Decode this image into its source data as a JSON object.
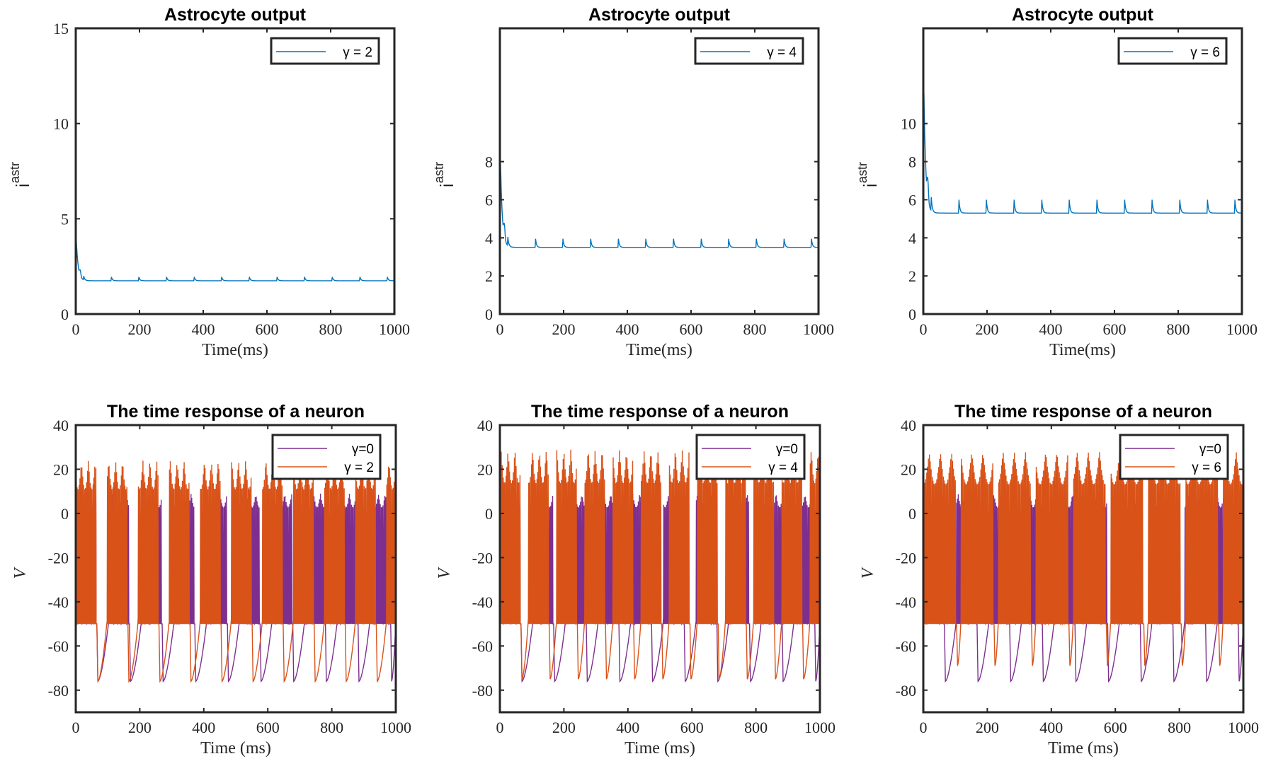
{
  "chart_data": [
    {
      "type": "line",
      "title": "Astrocyte output",
      "xlabel": "Time(ms)",
      "ylabel": "i",
      "ylabel_sup": "astr",
      "xlim": [
        0,
        1000
      ],
      "ylim": [
        0,
        15
      ],
      "xticks": [
        0,
        200,
        400,
        600,
        800,
        1000
      ],
      "yticks": [
        0,
        5,
        10,
        15
      ],
      "legend_position": "top-right",
      "series": [
        {
          "name": "γ = 2",
          "color": "#0072BD",
          "kind": "astro",
          "initial_peak": 3.8,
          "baseline": 1.75,
          "spike_height": 0.2,
          "spike_times": [
            25,
            112,
            198,
            285,
            372,
            458,
            545,
            632,
            718,
            805,
            892,
            978
          ]
        }
      ]
    },
    {
      "type": "line",
      "title": "Astrocyte output",
      "xlabel": "Time(ms)",
      "ylabel": "i",
      "ylabel_sup": "astr",
      "xlim": [
        0,
        1000
      ],
      "ylim": [
        0,
        15
      ],
      "xticks": [
        0,
        200,
        400,
        600,
        800,
        1000
      ],
      "yticks": [
        0,
        2,
        4,
        6,
        8
      ],
      "legend_position": "top-right",
      "series": [
        {
          "name": "γ = 4",
          "color": "#0072BD",
          "kind": "astro",
          "initial_peak": 7.9,
          "baseline": 3.5,
          "spike_height": 0.45,
          "spike_times": [
            25,
            112,
            198,
            285,
            372,
            458,
            545,
            632,
            718,
            805,
            892,
            978
          ]
        }
      ]
    },
    {
      "type": "line",
      "title": "Astrocyte output",
      "xlabel": "Time(ms)",
      "ylabel": "i",
      "ylabel_sup": "astr",
      "xlim": [
        0,
        1000
      ],
      "ylim": [
        0,
        15
      ],
      "xticks": [
        0,
        200,
        400,
        600,
        800,
        1000
      ],
      "yticks": [
        0,
        2,
        4,
        6,
        8,
        10
      ],
      "legend_position": "top-right",
      "series": [
        {
          "name": "γ = 6",
          "color": "#0072BD",
          "kind": "astro",
          "initial_peak": 11.6,
          "baseline": 5.3,
          "spike_height": 0.7,
          "spike_times": [
            25,
            112,
            198,
            285,
            372,
            458,
            545,
            632,
            718,
            805,
            892,
            978
          ]
        }
      ]
    },
    {
      "type": "line",
      "title": "The time response of a neuron",
      "xlabel": "Time (ms)",
      "ylabel": "V",
      "xlim": [
        0,
        1000
      ],
      "ylim": [
        -90,
        40
      ],
      "xticks": [
        0,
        200,
        400,
        600,
        800,
        1000
      ],
      "yticks": [
        -80,
        -60,
        -40,
        -20,
        0,
        20,
        40
      ],
      "legend_position": "top-right",
      "series": [
        {
          "name": "γ=0",
          "color": "#7E2F8E",
          "kind": "neuron",
          "period": 102,
          "burst": 62,
          "peak": 9,
          "trough": -76
        },
        {
          "name": "γ = 2",
          "color": "#D95319",
          "kind": "neuron",
          "period": 97,
          "burst": 62,
          "peak": 24,
          "trough": -76
        }
      ]
    },
    {
      "type": "line",
      "title": "The time response of a neuron",
      "xlabel": "Time (ms)",
      "ylabel": "V",
      "xlim": [
        0,
        1000
      ],
      "ylim": [
        -90,
        40
      ],
      "xticks": [
        0,
        200,
        400,
        600,
        800,
        1000
      ],
      "yticks": [
        -80,
        -60,
        -40,
        -20,
        0,
        20,
        40
      ],
      "legend_position": "top-right",
      "series": [
        {
          "name": "γ=0",
          "color": "#7E2F8E",
          "kind": "neuron",
          "period": 102,
          "burst": 62,
          "peak": 9,
          "trough": -76
        },
        {
          "name": "γ = 4",
          "color": "#D95319",
          "kind": "neuron",
          "period": 88,
          "burst": 62,
          "peak": 29,
          "trough": -75
        }
      ]
    },
    {
      "type": "line",
      "title": "The time response of a neuron",
      "xlabel": "Time (ms)",
      "ylabel": "V",
      "xlim": [
        0,
        1000
      ],
      "ylim": [
        -90,
        40
      ],
      "xticks": [
        0,
        200,
        400,
        600,
        800,
        1000
      ],
      "yticks": [
        -80,
        -60,
        -40,
        -20,
        0,
        20,
        40
      ],
      "legend_position": "top-right",
      "series": [
        {
          "name": "γ=0",
          "color": "#7E2F8E",
          "kind": "neuron",
          "period": 102,
          "burst": 62,
          "peak": 9,
          "trough": -76
        },
        {
          "name": "γ = 6",
          "color": "#D95319",
          "kind": "neuron",
          "period": 117,
          "burst": 100,
          "peak": 28,
          "trough": -69
        }
      ]
    }
  ]
}
